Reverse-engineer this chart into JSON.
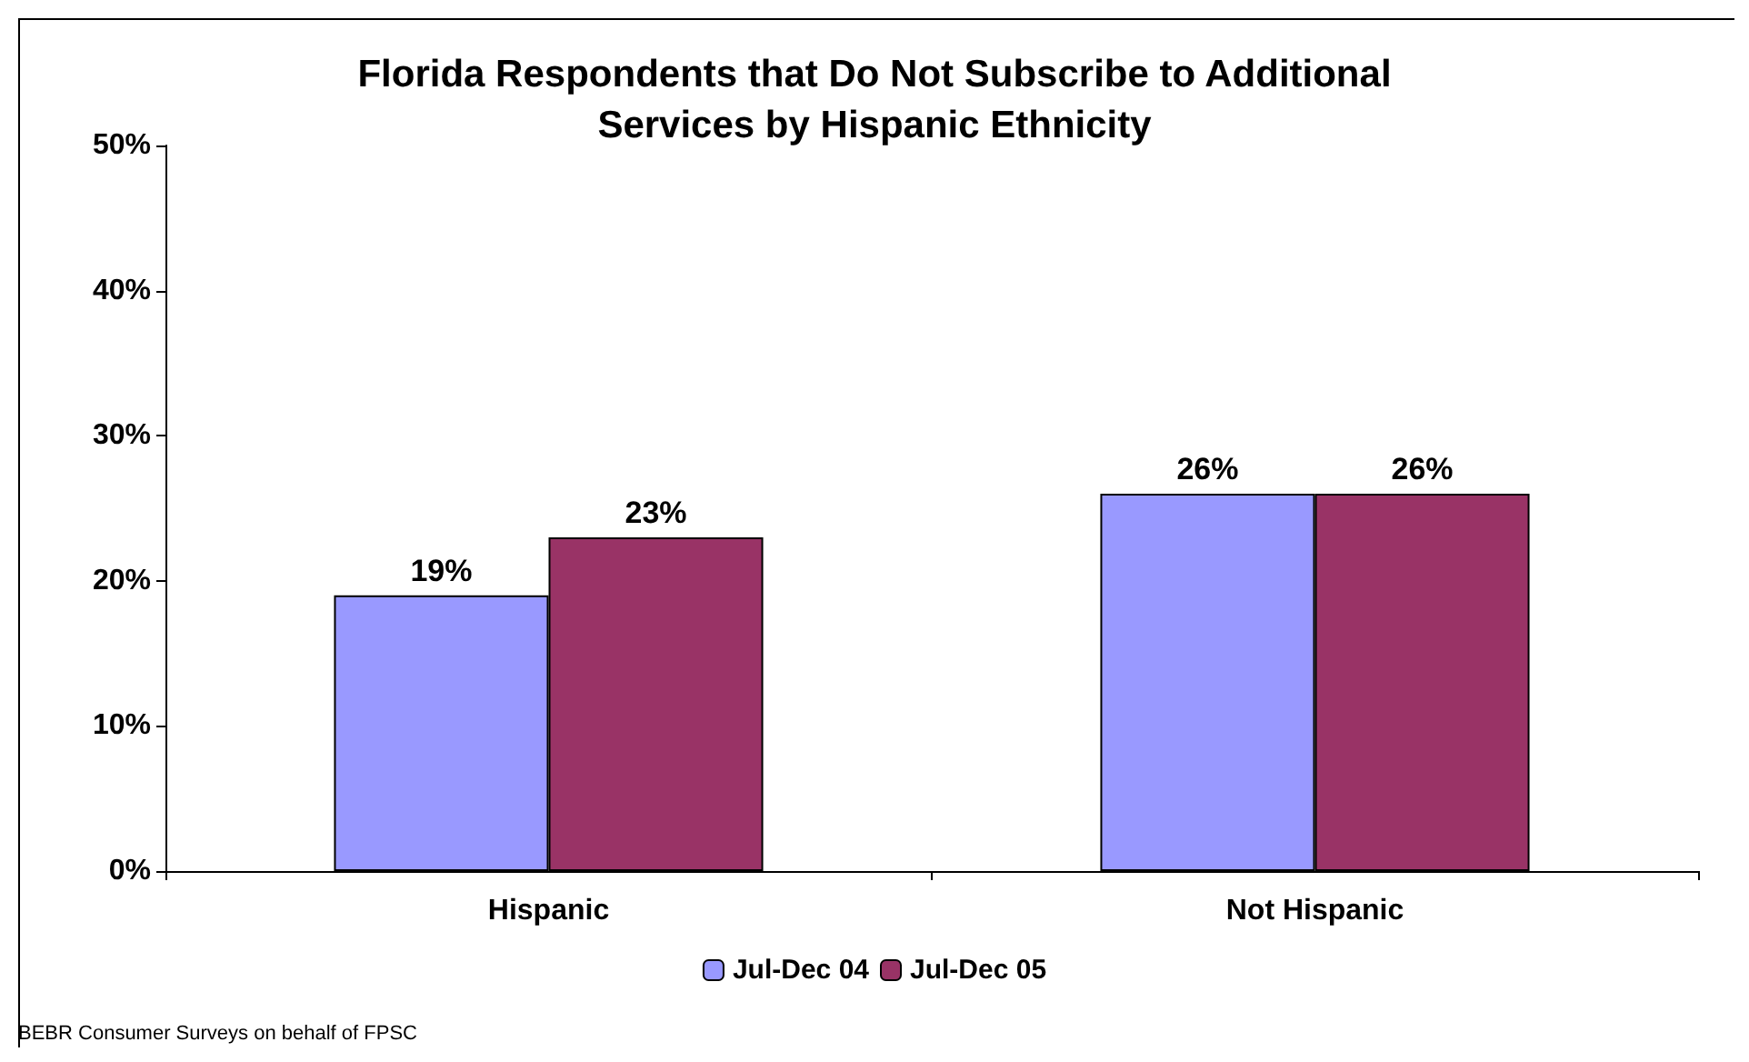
{
  "chart_data": {
    "type": "bar",
    "title": "Florida Respondents that Do Not Subscribe to Additional\nServices by Hispanic Ethnicity",
    "categories": [
      "Hispanic",
      "Not Hispanic"
    ],
    "series": [
      {
        "name": "Jul-Dec 04",
        "color": "#9999ff",
        "values": [
          19,
          26
        ],
        "value_labels": [
          "19%",
          "26%"
        ]
      },
      {
        "name": "Jul-Dec 05",
        "color": "#993366",
        "values": [
          23,
          26
        ],
        "value_labels": [
          "23%",
          "26%"
        ]
      }
    ],
    "ylim": [
      0,
      50
    ],
    "yticks": [
      {
        "value": 0,
        "label": "0%"
      },
      {
        "value": 10,
        "label": "10%"
      },
      {
        "value": 20,
        "label": "20%"
      },
      {
        "value": 30,
        "label": "30%"
      },
      {
        "value": 40,
        "label": "40%"
      },
      {
        "value": 50,
        "label": "50%"
      }
    ],
    "grid": false,
    "legend": "bottom",
    "annotations": [
      "BEBR Consumer Surveys on behalf of FPSC"
    ]
  }
}
